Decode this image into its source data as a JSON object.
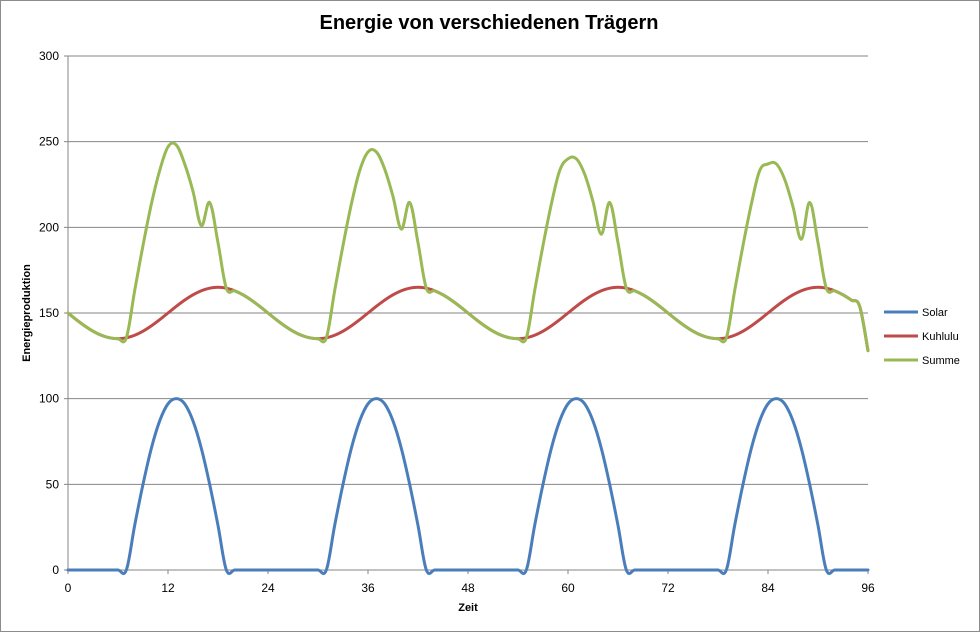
{
  "chart_data": {
    "type": "line",
    "title": "Energie von verschiedenen Trägern",
    "xlabel": "Zeit",
    "ylabel": "Energieproduktion",
    "xlim": [
      0,
      96
    ],
    "ylim": [
      0,
      300
    ],
    "x_ticks": [
      0,
      12,
      24,
      36,
      48,
      60,
      72,
      84,
      96
    ],
    "y_ticks": [
      0,
      50,
      100,
      150,
      200,
      250,
      300
    ],
    "grid": "horizontal",
    "legend_position": "right",
    "x": [
      0,
      1,
      2,
      3,
      4,
      5,
      6,
      7,
      8,
      9,
      10,
      11,
      12,
      13,
      14,
      15,
      16,
      17,
      18,
      19,
      20,
      21,
      22,
      23,
      24,
      25,
      26,
      27,
      28,
      29,
      30,
      31,
      32,
      33,
      34,
      35,
      36,
      37,
      38,
      39,
      40,
      41,
      42,
      43,
      44,
      45,
      46,
      47,
      48,
      49,
      50,
      51,
      52,
      53,
      54,
      55,
      56,
      57,
      58,
      59,
      60,
      61,
      62,
      63,
      64,
      65,
      66,
      67,
      68,
      69,
      70,
      71,
      72,
      73,
      74,
      75,
      76,
      77,
      78,
      79,
      80,
      81,
      82,
      83,
      84,
      85,
      86,
      87,
      88,
      89,
      90,
      91,
      92,
      93,
      94,
      95,
      96
    ],
    "series": [
      {
        "name": "Solar",
        "color": "#4a7ebb",
        "values": [
          0,
          0,
          0,
          0,
          0,
          0,
          0,
          0,
          26,
          50,
          71,
          87,
          97,
          100,
          97,
          87,
          71,
          50,
          26,
          0,
          0,
          0,
          0,
          0,
          0,
          0,
          0,
          0,
          0,
          0,
          0,
          0,
          26,
          50,
          71,
          87,
          97,
          100,
          97,
          87,
          71,
          50,
          26,
          0,
          0,
          0,
          0,
          0,
          0,
          0,
          0,
          0,
          0,
          0,
          0,
          0,
          26,
          50,
          71,
          87,
          97,
          100,
          97,
          87,
          71,
          50,
          26,
          0,
          0,
          0,
          0,
          0,
          0,
          0,
          0,
          0,
          0,
          0,
          0,
          0,
          26,
          50,
          71,
          87,
          97,
          100,
          97,
          87,
          71,
          50,
          26,
          0,
          0,
          0,
          0,
          0,
          0
        ]
      },
      {
        "name": "Kuhlulu",
        "color": "#be4b48",
        "values": [
          150,
          146.1,
          142.5,
          139.4,
          137.0,
          135.5,
          135.0,
          135.5,
          137.0,
          139.4,
          142.5,
          146.1,
          150,
          153.9,
          157.5,
          160.6,
          163.0,
          164.5,
          165.0,
          164.5,
          163.0,
          160.6,
          157.5,
          153.9,
          150,
          146.1,
          142.5,
          139.4,
          137.0,
          135.5,
          135.0,
          135.5,
          137.0,
          139.4,
          142.5,
          146.1,
          150,
          153.9,
          157.5,
          160.6,
          163.0,
          164.5,
          165.0,
          164.5,
          163.0,
          160.6,
          157.5,
          153.9,
          150,
          146.1,
          142.5,
          139.4,
          137.0,
          135.5,
          135.0,
          135.5,
          137.0,
          139.4,
          142.5,
          146.1,
          150,
          153.9,
          157.5,
          160.6,
          163.0,
          164.5,
          165.0,
          164.5,
          163.0,
          160.6,
          157.5,
          153.9,
          150,
          146.1,
          142.5,
          139.4,
          137.0,
          135.5,
          135.0,
          135.5,
          137.0,
          139.4,
          142.5,
          146.1,
          150,
          153.9,
          157.5,
          160.6,
          163.0,
          164.5,
          165.0,
          164.5,
          163.0,
          160.6,
          157.5,
          153.9,
          128
        ]
      },
      {
        "name": "Summe",
        "color": "#98b954",
        "values": [
          150,
          146.1,
          142.5,
          139.4,
          137.0,
          135.5,
          135.0,
          135.5,
          163.0,
          189.4,
          213.5,
          233.1,
          247,
          248,
          237,
          221,
          201,
          214.5,
          191.0,
          164.5,
          163.0,
          160.6,
          157.5,
          153.9,
          150,
          146.1,
          142.5,
          139.4,
          137.0,
          135.5,
          135.0,
          135.5,
          163.0,
          189.4,
          213.5,
          233.1,
          244,
          244,
          234,
          218,
          199,
          214.5,
          191.0,
          164.5,
          163.0,
          160.6,
          157.5,
          153.9,
          150,
          146.1,
          142.5,
          139.4,
          137.0,
          135.5,
          135.0,
          135.5,
          163.0,
          189.4,
          213.5,
          233.1,
          240,
          240,
          231,
          215,
          196,
          214.5,
          191.0,
          164.5,
          163.0,
          160.6,
          157.5,
          153.9,
          150,
          146.1,
          142.5,
          139.4,
          137.0,
          135.5,
          135.0,
          135.5,
          163.0,
          189.4,
          213.5,
          233.1,
          237,
          237,
          228,
          212,
          193,
          214.5,
          191.0,
          164.5,
          163.0,
          160.6,
          157.5,
          153.9,
          128
        ]
      }
    ]
  }
}
